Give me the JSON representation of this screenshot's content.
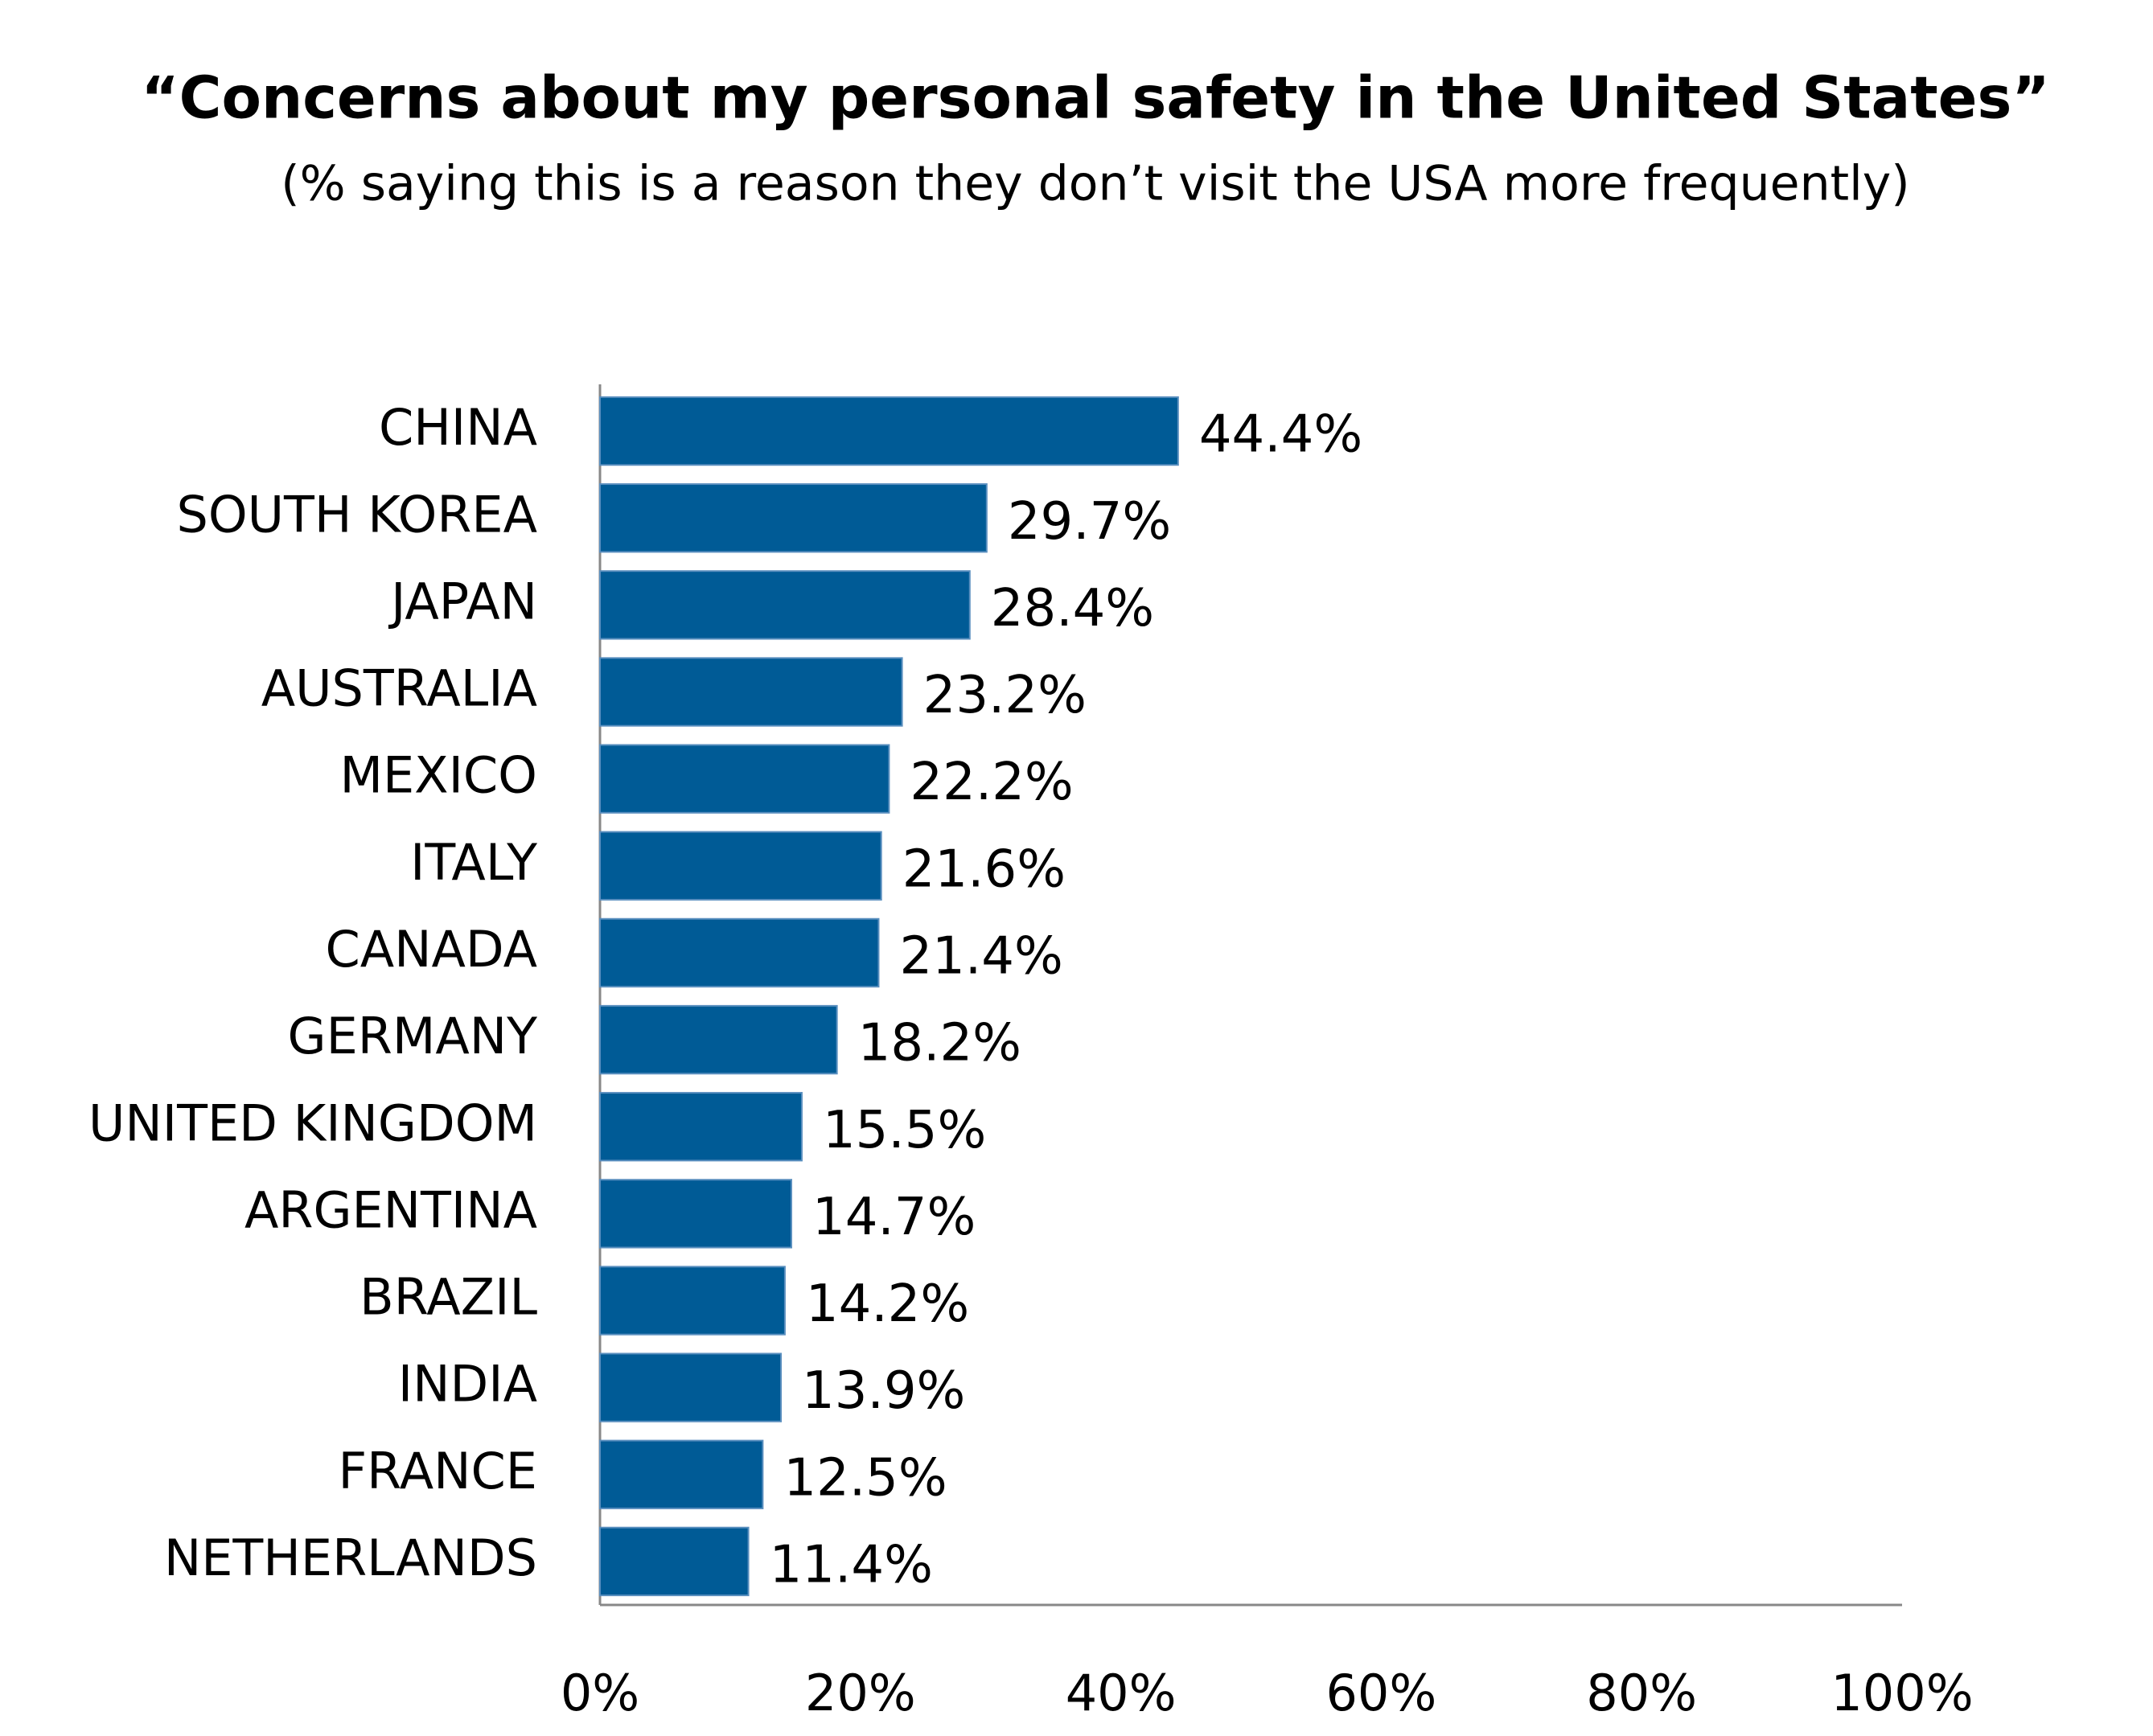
{
  "chart_data": {
    "type": "bar",
    "orientation": "horizontal",
    "title": "“Concerns about my personal safety in the United States”",
    "subtitle": "(% saying this is a reason they don’t visit the USA more frequently)",
    "categories": [
      "CHINA",
      "SOUTH KOREA",
      "JAPAN",
      "AUSTRALIA",
      "MEXICO",
      "ITALY",
      "CANADA",
      "GERMANY",
      "UNITED KINGDOM",
      "ARGENTINA",
      "BRAZIL",
      "INDIA",
      "FRANCE",
      "NETHERLANDS"
    ],
    "values": [
      44.4,
      29.7,
      28.4,
      23.2,
      22.2,
      21.6,
      21.4,
      18.2,
      15.5,
      14.7,
      14.2,
      13.9,
      12.5,
      11.4
    ],
    "value_labels": [
      "44.4%",
      "29.7%",
      "28.4%",
      "23.2%",
      "22.2%",
      "21.6%",
      "21.4%",
      "18.2%",
      "15.5%",
      "14.7%",
      "14.2%",
      "13.9%",
      "12.5%",
      "11.4%"
    ],
    "color": "#005b96",
    "xlim": [
      0,
      100
    ],
    "xticks": [
      {
        "value": 0,
        "label": "0%"
      },
      {
        "value": 20,
        "label": "20%"
      },
      {
        "value": 40,
        "label": "40%"
      },
      {
        "value": 60,
        "label": "60%"
      },
      {
        "value": 80,
        "label": "80%"
      },
      {
        "value": 100,
        "label": "100%"
      }
    ],
    "grid": false
  }
}
